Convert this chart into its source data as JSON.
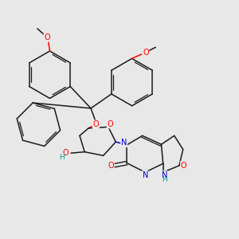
{
  "background_color": "#e8e8e8",
  "bond_color": "#1a1a1a",
  "atom_colors": {
    "O": "#ff0000",
    "N": "#0000cc",
    "H": "#009999",
    "C": "#1a1a1a"
  },
  "font_size_atom": 7.0,
  "title": ""
}
